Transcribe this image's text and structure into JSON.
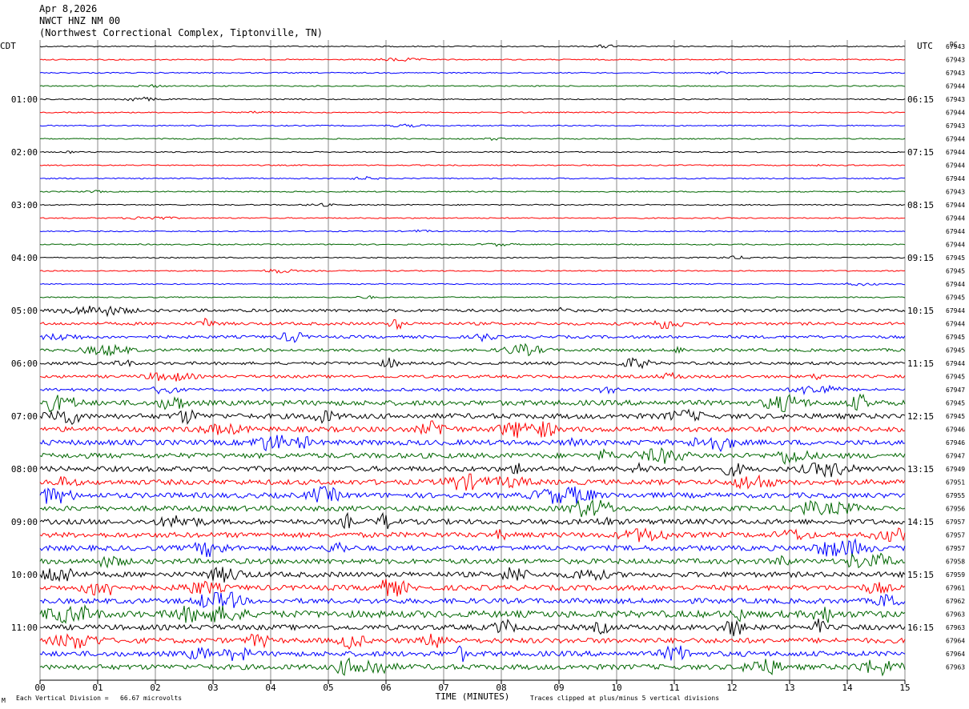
{
  "header": {
    "date": "Apr 8,2026",
    "station": "NWCT HNZ NM 00",
    "location": "(Northwest Correctional Complex, Tiptonville, TN)"
  },
  "left_timezone": "CDT",
  "right_timezone": "UTC",
  "dc_label": "DC",
  "chart_data": {
    "type": "line",
    "xlabel": "TIME (MINUTES)",
    "x_ticks": [
      "00",
      "01",
      "02",
      "03",
      "04",
      "05",
      "06",
      "07",
      "08",
      "09",
      "10",
      "11",
      "12",
      "13",
      "14",
      "15"
    ],
    "xlim": [
      0,
      15
    ],
    "left_hour_labels": [
      "01:00",
      "02:00",
      "03:00",
      "04:00",
      "05:00",
      "06:00",
      "07:00",
      "08:00",
      "09:00",
      "10:00",
      "11:00"
    ],
    "right_hour_labels": [
      "06:15",
      "07:15",
      "08:15",
      "09:15",
      "10:15",
      "11:15",
      "12:15",
      "13:15",
      "14:15",
      "15:15",
      "16:15"
    ],
    "trace_colors": [
      "#000000",
      "#ff0000",
      "#0000ff",
      "#006600"
    ],
    "dc_offsets": [
      "67943",
      "67943",
      "67943",
      "67944",
      "67943",
      "67944",
      "67943",
      "67944",
      "67944",
      "67944",
      "67944",
      "67943",
      "67944",
      "67944",
      "67944",
      "67944",
      "67945",
      "67945",
      "67944",
      "67945",
      "67944",
      "67944",
      "67945",
      "67945",
      "67944",
      "67945",
      "67947",
      "67945",
      "67945",
      "67946",
      "67946",
      "67947",
      "67949",
      "67951",
      "67955",
      "67956",
      "67957",
      "67957",
      "67957",
      "67958",
      "67959",
      "67961",
      "67962",
      "67963",
      "67963",
      "67964",
      "67964",
      "67963"
    ],
    "activity": [
      1,
      1,
      1,
      1,
      1,
      1,
      1,
      1,
      1,
      1,
      1,
      1,
      1,
      1,
      1,
      1,
      1,
      1,
      1,
      1,
      2,
      2,
      2,
      2,
      2,
      2,
      2,
      3,
      3,
      3,
      3,
      3,
      3,
      3,
      3,
      3,
      3,
      3,
      3,
      3,
      3,
      3,
      3,
      4,
      3,
      3,
      3,
      3
    ]
  },
  "footer": {
    "scale": "Each Vertical Division =   66.67 microvolts",
    "clip_note": "Traces clipped at plus/minus 5 vertical divisions",
    "corner_mark": "M"
  }
}
